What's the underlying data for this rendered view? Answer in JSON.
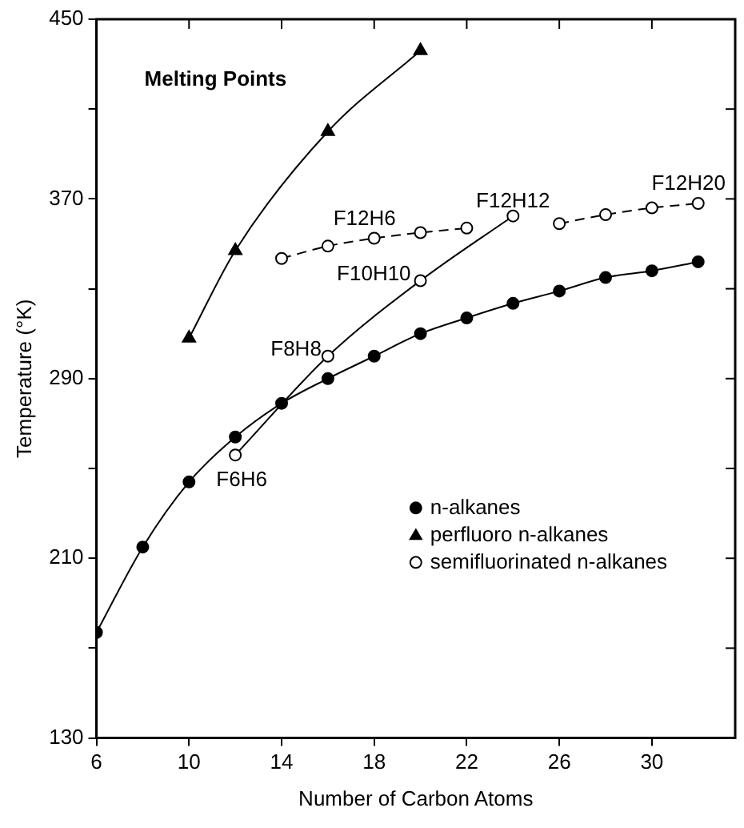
{
  "chart_data": {
    "type": "line",
    "title": "Melting Points",
    "xlabel": "Number of Carbon Atoms",
    "ylabel": "Temperature (°K)",
    "xlim": [
      6,
      33.6
    ],
    "xticks": [
      6,
      10,
      14,
      18,
      22,
      26,
      30
    ],
    "ylim": [
      130,
      450
    ],
    "yticks": [
      130,
      {
        "value": 170,
        "label": null
      },
      210,
      {
        "value": 250,
        "label": null
      },
      290,
      {
        "value": 330,
        "label": null
      },
      370,
      {
        "value": 410,
        "label": null
      },
      450
    ],
    "grid": false,
    "legend": "bottom right",
    "line_style": "solid",
    "series": [
      {
        "name": "n-alkanes",
        "color": "#000000",
        "marker": "circle",
        "x": [
          6,
          8,
          10,
          12,
          14,
          16,
          18,
          20,
          22,
          24,
          26,
          28,
          30,
          32
        ],
        "values": [
          177,
          215,
          244,
          264,
          279,
          290,
          300,
          310,
          317,
          323.5,
          329,
          335,
          338,
          342
        ]
      },
      {
        "name": "perfluoro n-alkanes",
        "color": "#000000",
        "marker": "triangle",
        "x": [
          10,
          12,
          16,
          20
        ],
        "values": [
          308,
          347,
          400,
          436
        ]
      },
      {
        "name": "semifluorinated n-alkanes",
        "color": "#000000",
        "marker": "circle",
        "x": [
          12,
          16,
          20,
          24
        ],
        "values": [
          256,
          300,
          333.6,
          362.4
        ]
      },
      {
        "color": "#000000",
        "marker": "circle",
        "line_style": "dashed",
        "x": [
          14,
          16,
          18,
          20,
          22
        ],
        "values": [
          343.5,
          349,
          352.5,
          355,
          357
        ]
      },
      {
        "color": "#000000",
        "marker": "circle",
        "line_style": "dashed",
        "x": [
          26,
          28,
          30,
          32
        ],
        "values": [
          359,
          363,
          366,
          368
        ]
      }
    ],
    "annotations": [
      {
        "text": "F6H6",
        "x": 12,
        "y": 256
      },
      {
        "text": "F8H8",
        "x": 16,
        "y": 300
      },
      {
        "text": "F10H10",
        "x": 20,
        "y": 333.6
      },
      {
        "text": "F12H12",
        "x": 24,
        "y": 362.4
      },
      {
        "text": "F12H6",
        "x": 18,
        "y": 352.5
      },
      {
        "text": "F12H20",
        "x": 32,
        "y": 368
      }
    ]
  }
}
